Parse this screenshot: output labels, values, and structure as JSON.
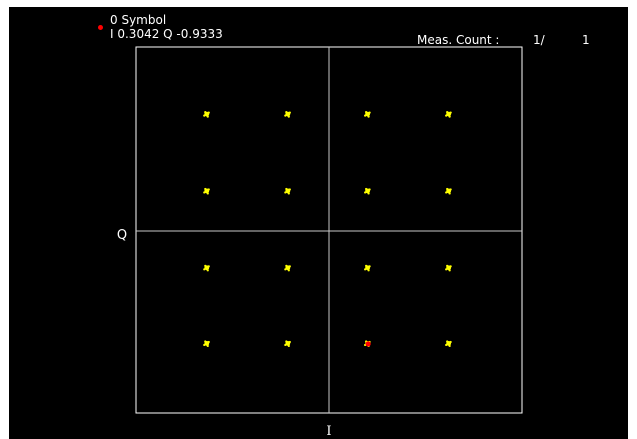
{
  "marker": {
    "label": "0 Symbol",
    "readout": "I 0.3042 Q -0.9333",
    "color": "#ff0000"
  },
  "meas": {
    "label": "Meas. Count :",
    "current": "1/",
    "total": "1"
  },
  "colors": {
    "background": "#000000",
    "frame": "#ffffff",
    "axes": "#c8c8c8",
    "points": "#ffff00",
    "marker": "#ff0000"
  },
  "chart_data": {
    "type": "scatter",
    "title": "",
    "xlabel": "I",
    "ylabel": "Q",
    "xlim": [
      -1.5,
      1.5
    ],
    "ylim": [
      -1.5,
      1.5
    ],
    "grid": false,
    "series": [
      {
        "points": [
          {
            "x": -0.95,
            "y": 0.95
          },
          {
            "x": -0.32,
            "y": 0.95
          },
          {
            "x": 0.3,
            "y": 0.95
          },
          {
            "x": 0.93,
            "y": 0.95
          },
          {
            "x": -0.95,
            "y": 0.32
          },
          {
            "x": -0.32,
            "y": 0.32
          },
          {
            "x": 0.3,
            "y": 0.32
          },
          {
            "x": 0.93,
            "y": 0.32
          },
          {
            "x": -0.95,
            "y": -0.31
          },
          {
            "x": -0.32,
            "y": -0.31
          },
          {
            "x": 0.3,
            "y": -0.31
          },
          {
            "x": 0.93,
            "y": -0.31
          },
          {
            "x": -0.95,
            "y": -0.93
          },
          {
            "x": -0.32,
            "y": -0.93
          },
          {
            "x": 0.3,
            "y": -0.93
          },
          {
            "x": 0.93,
            "y": -0.93
          }
        ]
      }
    ],
    "marker_point": {
      "x": 0.3042,
      "y": -0.9333
    }
  }
}
